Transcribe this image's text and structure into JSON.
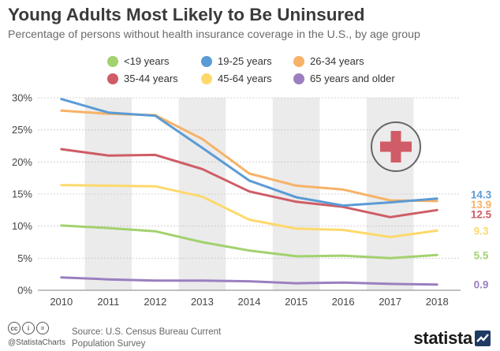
{
  "header": {
    "title": "Young Adults Most Likely to Be Uninsured",
    "subtitle": "Percentage of persons without health insurance coverage in the U.S., by age group"
  },
  "chart_data": {
    "type": "line",
    "title": "Young Adults Most Likely to Be Uninsured",
    "subtitle": "Percentage of persons without health insurance coverage in the U.S., by age group",
    "x": [
      "2010",
      "2011",
      "2012",
      "2013",
      "2014",
      "2015",
      "2016",
      "2017",
      "2018"
    ],
    "ylim": [
      0,
      30
    ],
    "yticks": [
      0,
      5,
      10,
      15,
      20,
      25,
      30
    ],
    "ytick_labels": [
      "0%",
      "5%",
      "10%",
      "15%",
      "20%",
      "25%",
      "30%"
    ],
    "grid": "horizontal",
    "column_shading": "alternating",
    "legend_position": "top",
    "series": [
      {
        "name": "<19 years",
        "color": "#a3d16f",
        "values": [
          10.1,
          9.7,
          9.2,
          7.5,
          6.2,
          5.3,
          5.4,
          5.0,
          5.5
        ],
        "end_label": "5.5"
      },
      {
        "name": "19-25 years",
        "color": "#5b9bd5",
        "values": [
          29.8,
          27.7,
          27.2,
          22.2,
          17.1,
          14.5,
          13.2,
          13.7,
          14.3
        ],
        "end_label": "14.3"
      },
      {
        "name": "26-34 years",
        "color": "#f7b267",
        "values": [
          28.0,
          27.5,
          27.3,
          23.6,
          18.2,
          16.3,
          15.7,
          14.0,
          13.9
        ],
        "end_label": "13.9"
      },
      {
        "name": "35-44 years",
        "color": "#cf5c66",
        "values": [
          22.0,
          21.0,
          21.1,
          18.9,
          15.4,
          13.8,
          13.0,
          11.4,
          12.5
        ],
        "end_label": "12.5"
      },
      {
        "name": "45-64 years",
        "color": "#fdd96b",
        "values": [
          16.4,
          16.3,
          16.2,
          14.6,
          11.0,
          9.6,
          9.4,
          8.3,
          9.3
        ],
        "end_label": "9.3"
      },
      {
        "name": "65 years and older",
        "color": "#9b7fc0",
        "values": [
          2.0,
          1.7,
          1.5,
          1.5,
          1.4,
          1.1,
          1.2,
          1.0,
          0.9
        ],
        "end_label": "0.9"
      }
    ]
  },
  "footer": {
    "cc_labels": [
      "cc",
      "i",
      "="
    ],
    "handle": "@StatistaCharts",
    "source": "Source: U.S. Census Bureau Current Population Survey",
    "brand": "statista"
  }
}
